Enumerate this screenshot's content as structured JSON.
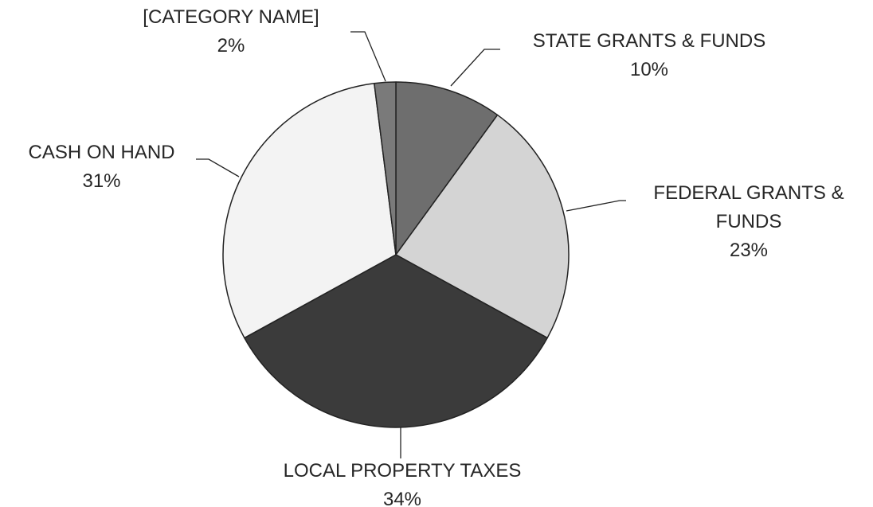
{
  "chart_data": {
    "type": "pie",
    "categories": [
      "STATE GRANTS & FUNDS",
      "FEDERAL GRANTS & FUNDS",
      "LOCAL PROPERTY TAXES",
      "CASH ON HAND",
      "[CATEGORY NAME]"
    ],
    "values": [
      10,
      23,
      34,
      31,
      2
    ],
    "value_labels": [
      "10%",
      "23%",
      "34%",
      "31%",
      "2%"
    ],
    "colors": [
      "#6e6e6e",
      "#d4d4d4",
      "#3b3b3b",
      "#f3f3f3",
      "#7a7a7a"
    ]
  }
}
